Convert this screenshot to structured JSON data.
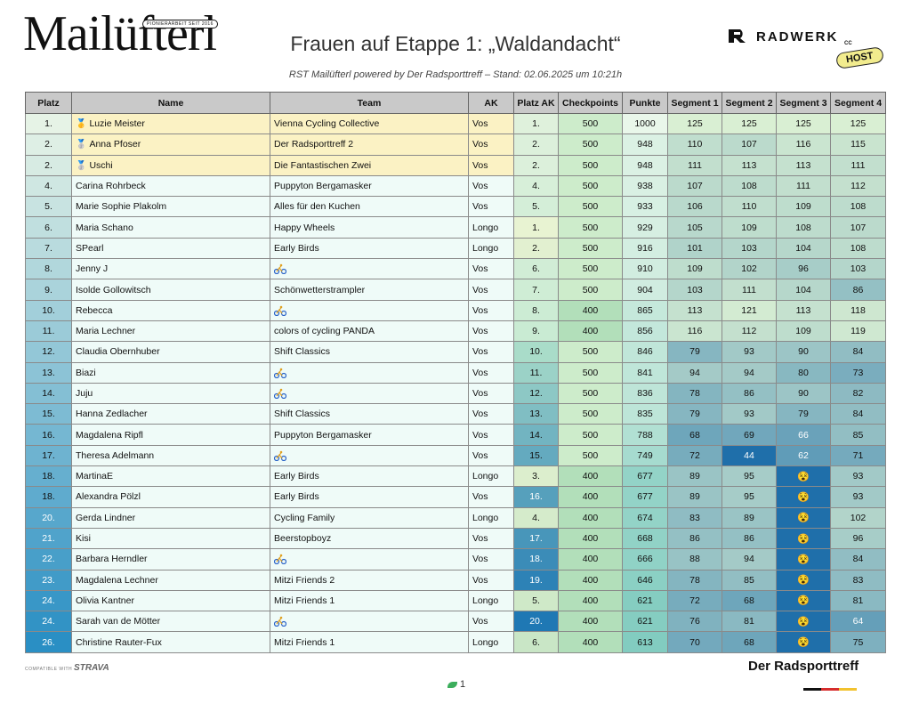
{
  "header": {
    "logo_text": "Mailüfterl",
    "logo_tag": "PIONIERARBEIT SEIT 2016",
    "title": "Frauen auf Etappe 1: „Waldandacht“",
    "subtitle": "RST Mailüfterl powered by Der Radsporttreff – Stand: 02.06.2025 um 10:21h",
    "sponsor_name": "RADWERK",
    "sponsor_sub": "CC",
    "host_badge": "HOST"
  },
  "table": {
    "columns": [
      "Platz",
      "Name",
      "Team",
      "AK",
      "Platz AK",
      "Checkpoints",
      "Punkte",
      "Segment 1",
      "Segment 2",
      "Segment 3",
      "Segment 4"
    ],
    "rows": [
      {
        "platz": "1.",
        "medal": "gold",
        "name": "Luzie Meister",
        "team": "Vienna Cycling Collective",
        "ak": "Vos",
        "platz_ak": "1.",
        "checkpoints": "500",
        "punkte": "1000",
        "s1": "125",
        "s2": "125",
        "s3": "125",
        "s4": "125"
      },
      {
        "platz": "2.",
        "medal": "silver",
        "name": "Anna Pfoser",
        "team": "Der Radsporttreff 2",
        "ak": "Vos",
        "platz_ak": "2.",
        "checkpoints": "500",
        "punkte": "948",
        "s1": "110",
        "s2": "107",
        "s3": "116",
        "s4": "115"
      },
      {
        "platz": "2.",
        "medal": "silver",
        "name": "Uschi",
        "team": "Die Fantastischen Zwei",
        "ak": "Vos",
        "platz_ak": "2.",
        "checkpoints": "500",
        "punkte": "948",
        "s1": "111",
        "s2": "113",
        "s3": "113",
        "s4": "111"
      },
      {
        "platz": "4.",
        "name": "Carina Rohrbeck",
        "team": "Puppyton Bergamasker",
        "ak": "Vos",
        "platz_ak": "4.",
        "checkpoints": "500",
        "punkte": "938",
        "s1": "107",
        "s2": "108",
        "s3": "111",
        "s4": "112"
      },
      {
        "platz": "5.",
        "name": "Marie Sophie Plakolm",
        "team": "Alles für den Kuchen",
        "ak": "Vos",
        "platz_ak": "5.",
        "checkpoints": "500",
        "punkte": "933",
        "s1": "106",
        "s2": "110",
        "s3": "109",
        "s4": "108"
      },
      {
        "platz": "6.",
        "name": "Maria Schano",
        "team": "Happy Wheels",
        "ak": "Longo",
        "platz_ak": "1.",
        "checkpoints": "500",
        "punkte": "929",
        "s1": "105",
        "s2": "109",
        "s3": "108",
        "s4": "107"
      },
      {
        "platz": "7.",
        "name": "SPearl",
        "team": "Early Birds",
        "ak": "Longo",
        "platz_ak": "2.",
        "checkpoints": "500",
        "punkte": "916",
        "s1": "101",
        "s2": "103",
        "s3": "104",
        "s4": "108"
      },
      {
        "platz": "8.",
        "name": "Jenny J",
        "team": "",
        "team_icon": "bike",
        "ak": "Vos",
        "platz_ak": "6.",
        "checkpoints": "500",
        "punkte": "910",
        "s1": "109",
        "s2": "102",
        "s3": "96",
        "s4": "103"
      },
      {
        "platz": "9.",
        "name": "Isolde Gollowitsch",
        "team": "Schönwetterstrampler",
        "ak": "Vos",
        "platz_ak": "7.",
        "checkpoints": "500",
        "punkte": "904",
        "s1": "103",
        "s2": "111",
        "s3": "104",
        "s4": "86"
      },
      {
        "platz": "10.",
        "name": "Rebecca",
        "team": "",
        "team_icon": "bike",
        "ak": "Vos",
        "platz_ak": "8.",
        "checkpoints": "400",
        "punkte": "865",
        "s1": "113",
        "s2": "121",
        "s3": "113",
        "s4": "118"
      },
      {
        "platz": "11.",
        "name": "Maria Lechner",
        "team": "colors of cycling PANDA",
        "ak": "Vos",
        "platz_ak": "9.",
        "checkpoints": "400",
        "punkte": "856",
        "s1": "116",
        "s2": "112",
        "s3": "109",
        "s4": "119"
      },
      {
        "platz": "12.",
        "name": "Claudia Obernhuber",
        "team": "Shift Classics",
        "ak": "Vos",
        "platz_ak": "10.",
        "checkpoints": "500",
        "punkte": "846",
        "s1": "79",
        "s2": "93",
        "s3": "90",
        "s4": "84"
      },
      {
        "platz": "13.",
        "name": "Biazi",
        "team": "",
        "team_icon": "bike",
        "ak": "Vos",
        "platz_ak": "11.",
        "checkpoints": "500",
        "punkte": "841",
        "s1": "94",
        "s2": "94",
        "s3": "80",
        "s4": "73"
      },
      {
        "platz": "14.",
        "name": "Juju",
        "team": "",
        "team_icon": "bike",
        "ak": "Vos",
        "platz_ak": "12.",
        "checkpoints": "500",
        "punkte": "836",
        "s1": "78",
        "s2": "86",
        "s3": "90",
        "s4": "82"
      },
      {
        "platz": "15.",
        "name": "Hanna Zedlacher",
        "team": "Shift Classics",
        "ak": "Vos",
        "platz_ak": "13.",
        "checkpoints": "500",
        "punkte": "835",
        "s1": "79",
        "s2": "93",
        "s3": "79",
        "s4": "84"
      },
      {
        "platz": "16.",
        "name": "Magdalena Ripfl",
        "team": "Puppyton Bergamasker",
        "ak": "Vos",
        "platz_ak": "14.",
        "checkpoints": "500",
        "punkte": "788",
        "s1": "68",
        "s2": "69",
        "s3": "66",
        "s4": "85"
      },
      {
        "platz": "17.",
        "name": "Theresa Adelmann",
        "team": "",
        "team_icon": "bike",
        "ak": "Vos",
        "platz_ak": "15.",
        "checkpoints": "500",
        "punkte": "749",
        "s1": "72",
        "s2": "44",
        "s3": "62",
        "s4": "71"
      },
      {
        "platz": "18.",
        "name": "MartinaE",
        "team": "Early Birds",
        "ak": "Longo",
        "platz_ak": "3.",
        "checkpoints": "400",
        "punkte": "677",
        "s1": "89",
        "s2": "95",
        "s3": "",
        "s3_icon": "face",
        "s4": "93"
      },
      {
        "platz": "18.",
        "name": "Alexandra Pölzl",
        "team": "Early Birds",
        "ak": "Vos",
        "platz_ak": "16.",
        "checkpoints": "400",
        "punkte": "677",
        "s1": "89",
        "s2": "95",
        "s3": "",
        "s3_icon": "face",
        "s4": "93"
      },
      {
        "platz": "20.",
        "name": "Gerda Lindner",
        "team": "Cycling Family",
        "ak": "Longo",
        "platz_ak": "4.",
        "checkpoints": "400",
        "punkte": "674",
        "s1": "83",
        "s2": "89",
        "s3": "",
        "s3_icon": "face",
        "s4": "102"
      },
      {
        "platz": "21.",
        "name": "Kisi",
        "team": "Beerstopboyz",
        "ak": "Vos",
        "platz_ak": "17.",
        "checkpoints": "400",
        "punkte": "668",
        "s1": "86",
        "s2": "86",
        "s3": "",
        "s3_icon": "face",
        "s4": "96"
      },
      {
        "platz": "22.",
        "name": "Barbara Herndler",
        "team": "",
        "team_icon": "bike",
        "ak": "Vos",
        "platz_ak": "18.",
        "checkpoints": "400",
        "punkte": "666",
        "s1": "88",
        "s2": "94",
        "s3": "",
        "s3_icon": "face",
        "s4": "84"
      },
      {
        "platz": "23.",
        "name": "Magdalena Lechner",
        "team": "Mitzi Friends 2",
        "ak": "Vos",
        "platz_ak": "19.",
        "checkpoints": "400",
        "punkte": "646",
        "s1": "78",
        "s2": "85",
        "s3": "",
        "s3_icon": "face",
        "s4": "83"
      },
      {
        "platz": "24.",
        "name": "Olivia Kantner",
        "team": "Mitzi Friends 1",
        "ak": "Longo",
        "platz_ak": "5.",
        "checkpoints": "400",
        "punkte": "621",
        "s1": "72",
        "s2": "68",
        "s3": "",
        "s3_icon": "face",
        "s4": "81"
      },
      {
        "platz": "24.",
        "name": "Sarah van de Mötter",
        "team": "",
        "team_icon": "bike",
        "ak": "Vos",
        "platz_ak": "20.",
        "checkpoints": "400",
        "punkte": "621",
        "s1": "76",
        "s2": "81",
        "s3": "",
        "s3_icon": "face",
        "s4": "64"
      },
      {
        "platz": "26.",
        "name": "Christine Rauter-Fux",
        "team": "Mitzi Friends 1",
        "ak": "Longo",
        "platz_ak": "6.",
        "checkpoints": "400",
        "punkte": "613",
        "s1": "70",
        "s2": "68",
        "s3": "",
        "s3_icon": "face",
        "s4": "75"
      }
    ]
  },
  "colors": {
    "header_bg": "#c9c9c9",
    "podium_bg": "#fbf2c4",
    "row_bg": "#effbf8",
    "platz_scale": [
      "#e6f3e6",
      "#2a8fc4"
    ],
    "cell_scale_low": "#1f6faa",
    "cell_scale_high": "#d9efd3",
    "checkpoints_500": "#cdeccb",
    "checkpoints_400": "#b2dfba"
  },
  "footer": {
    "compatible": "COMPATIBLE WITH",
    "strava": "STRAVA",
    "brand": "Der Radsporttreff",
    "page_number": "1",
    "flag_colors": [
      "#111111",
      "#d62d2d",
      "#f2c22e"
    ]
  }
}
